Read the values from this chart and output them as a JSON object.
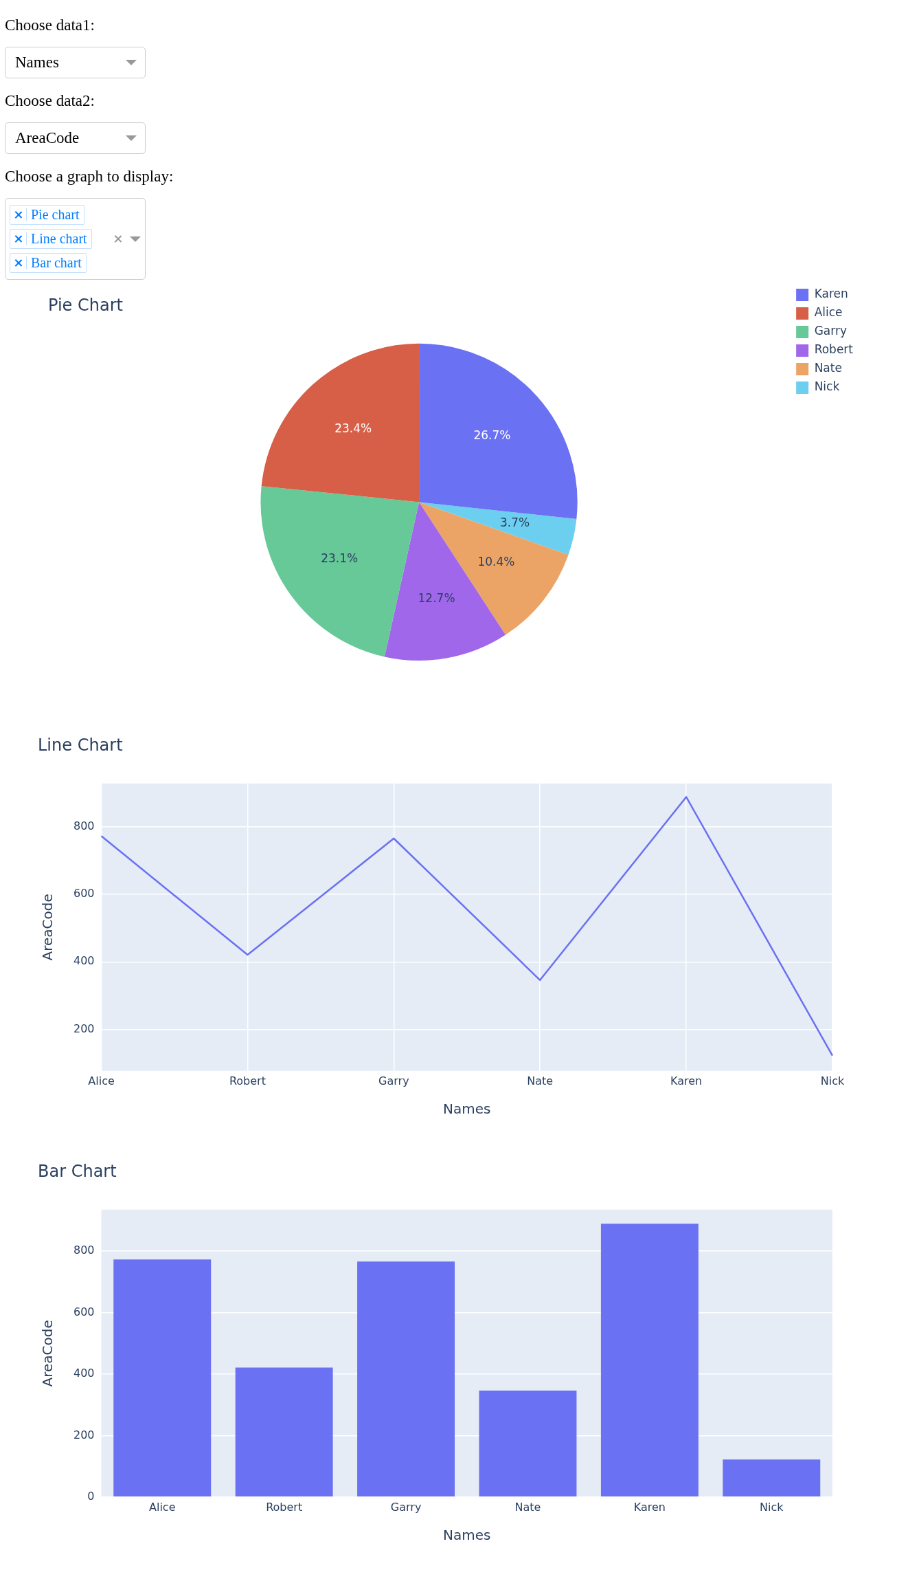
{
  "chart_data": [
    {
      "type": "other",
      "annotations": [
        "Choose data1:",
        "Names",
        "Choose data2:",
        "AreaCode",
        "Choose a graph to display:",
        "Pie chart",
        "Line chart",
        "Bar chart"
      ]
    },
    {
      "type": "pie",
      "title": "Pie Chart",
      "categories": [
        "Karen",
        "Alice",
        "Garry",
        "Robert",
        "Nate",
        "Nick"
      ],
      "values": [
        26.7,
        23.4,
        23.1,
        12.7,
        10.4,
        3.7
      ],
      "colors": [
        "#6a71f2",
        "#d75f48",
        "#67c997",
        "#a067ea",
        "#eca466",
        "#6ccfef"
      ],
      "value_labels": [
        "26.7%",
        "23.4%",
        "23.1%",
        "12.7%",
        "10.4%",
        "3.7%"
      ],
      "legend": "top right"
    },
    {
      "type": "line",
      "title": "Line Chart",
      "xlabel": "Names",
      "ylabel": "AreaCode",
      "categories": [
        "Alice",
        "Robert",
        "Garry",
        "Nate",
        "Karen",
        "Nick"
      ],
      "values": [
        773,
        421,
        766,
        346,
        889,
        122
      ],
      "color": "#6a71f2",
      "ylim": [
        77,
        929
      ],
      "yticks": [
        200,
        400,
        600,
        800
      ],
      "grid": true
    },
    {
      "type": "bar",
      "title": "Bar Chart",
      "xlabel": "Names",
      "ylabel": "AreaCode",
      "categories": [
        "Alice",
        "Robert",
        "Garry",
        "Nate",
        "Karen",
        "Nick"
      ],
      "values": [
        773,
        421,
        766,
        346,
        889,
        122
      ],
      "color": "#6a71f2",
      "ylim": [
        0,
        935
      ],
      "yticks": [
        0,
        200,
        400,
        600,
        800
      ],
      "grid": "y"
    }
  ]
}
